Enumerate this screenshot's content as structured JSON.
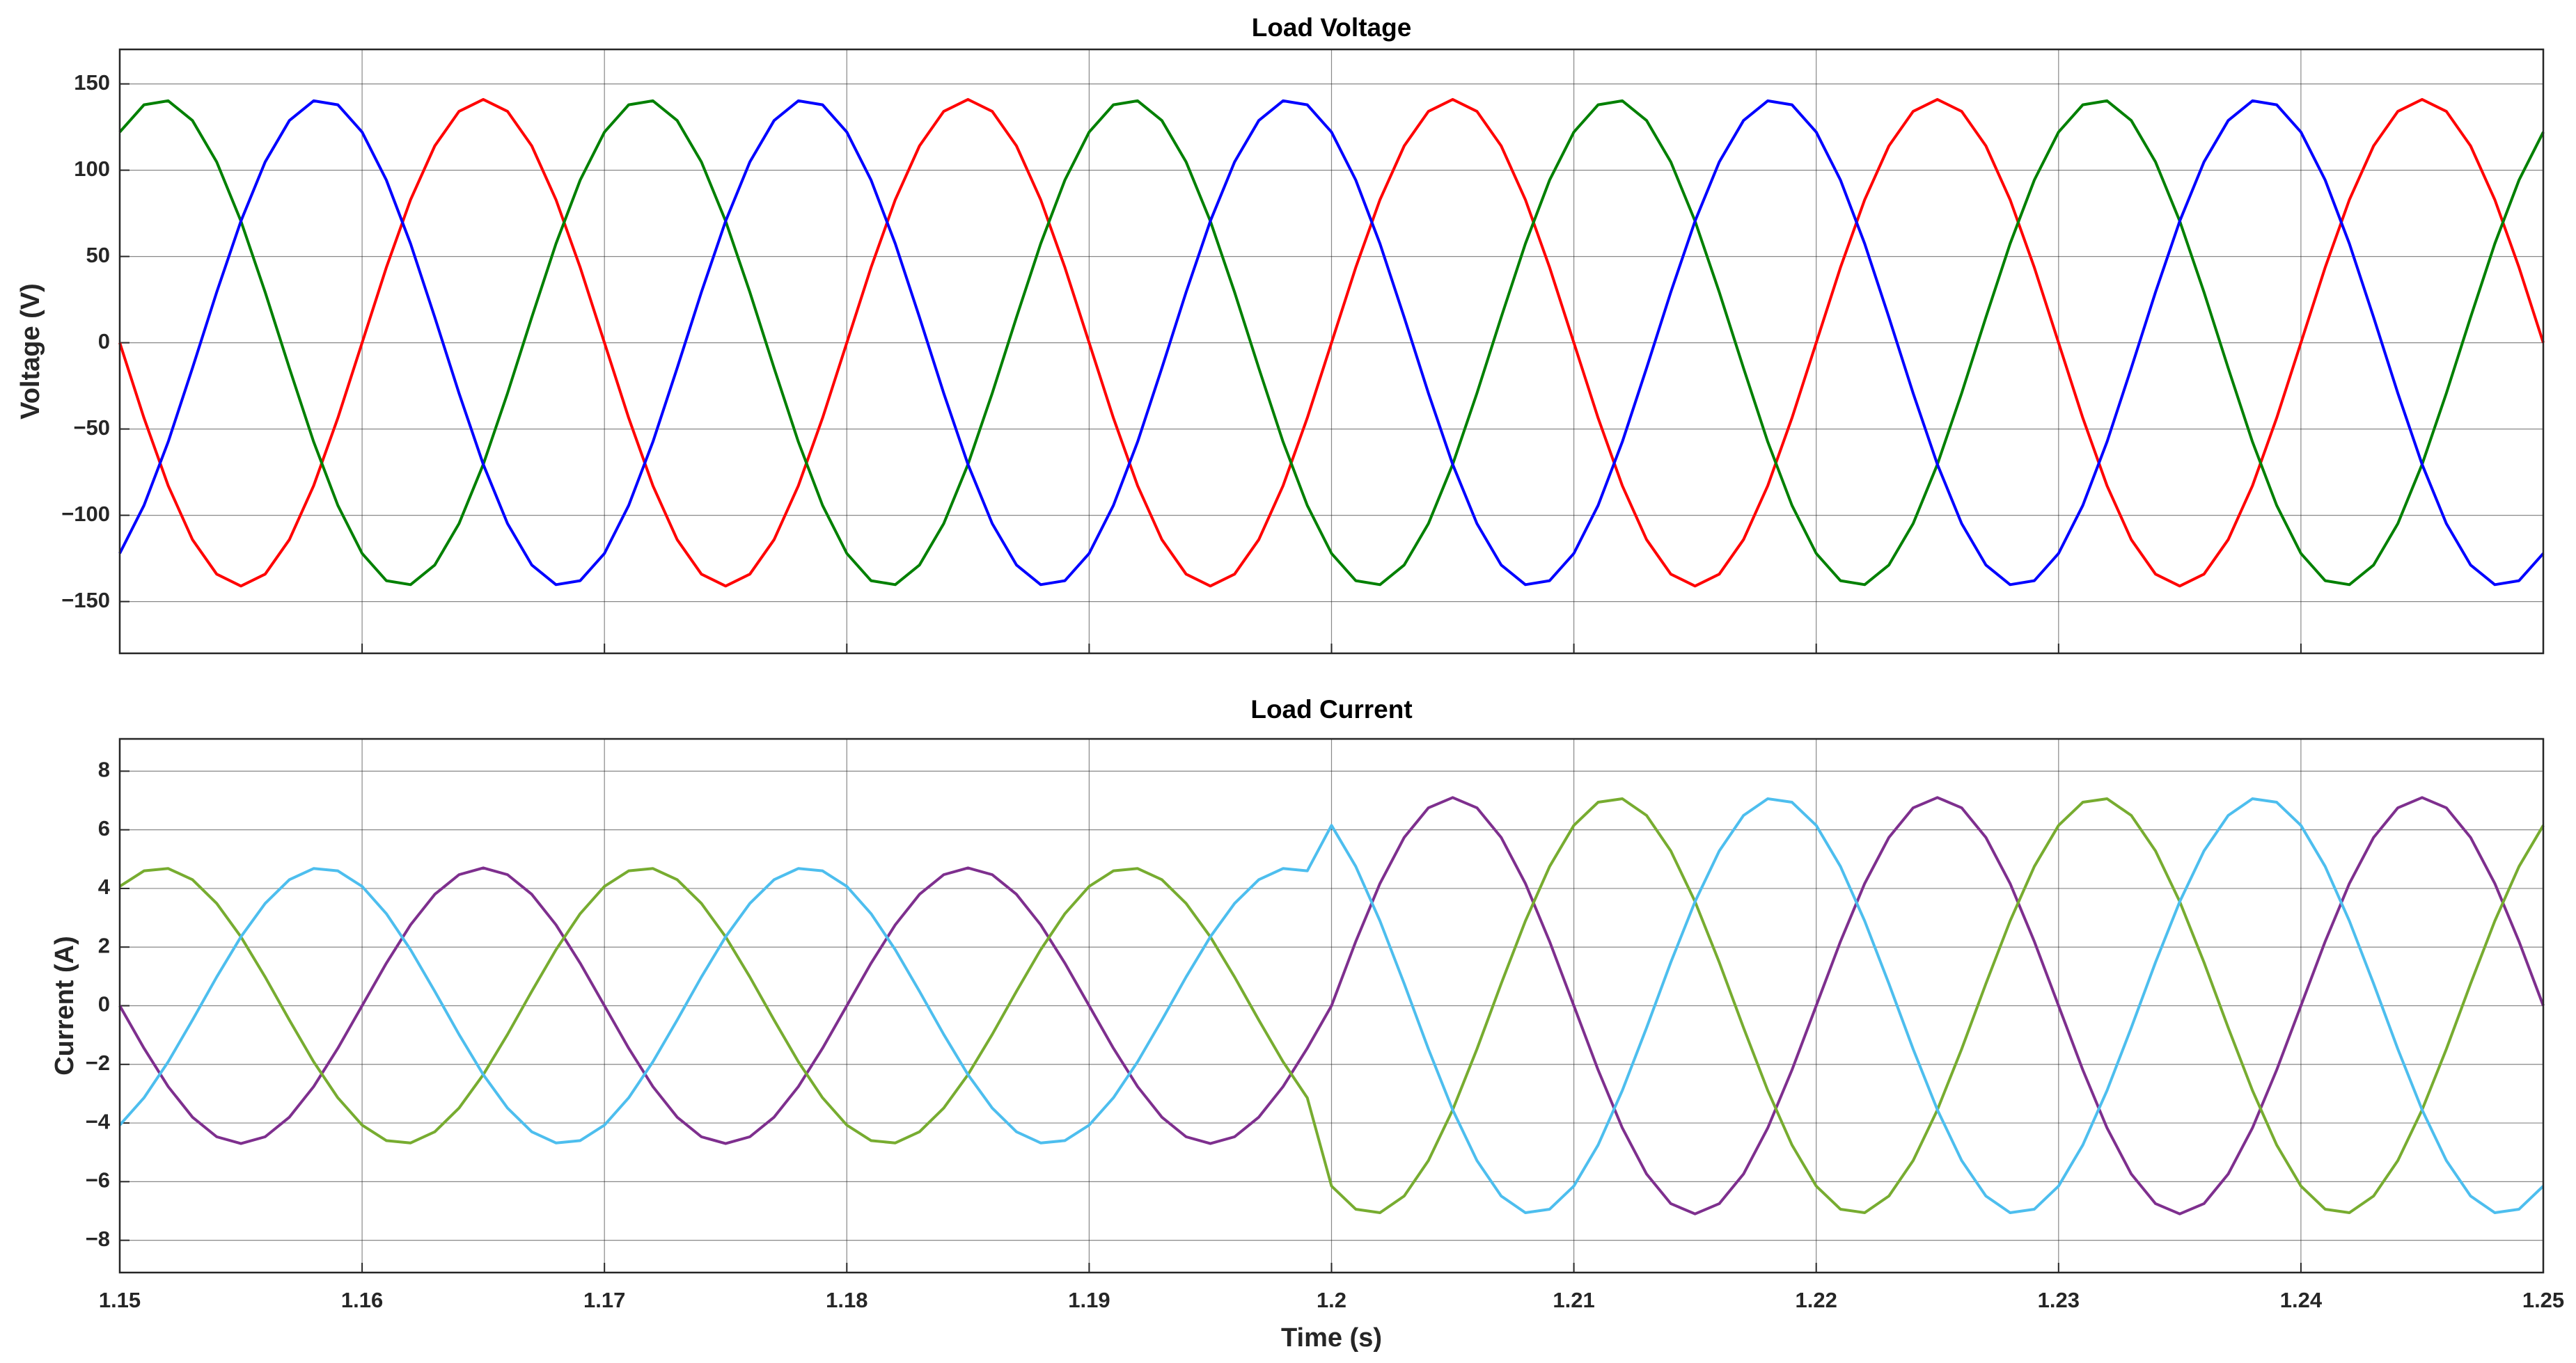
{
  "chart_data": [
    {
      "type": "line",
      "title": "Load Voltage",
      "ylabel": "Voltage (V)",
      "x": [
        1.15,
        1.151,
        1.152,
        1.153,
        1.154,
        1.155,
        1.156,
        1.157,
        1.158,
        1.159,
        1.16,
        1.161,
        1.162,
        1.163,
        1.164,
        1.165,
        1.166,
        1.167,
        1.168,
        1.169,
        1.17,
        1.171,
        1.172,
        1.173,
        1.174,
        1.175,
        1.176,
        1.177,
        1.178,
        1.179,
        1.18,
        1.181,
        1.182,
        1.183,
        1.184,
        1.185,
        1.186,
        1.187,
        1.188,
        1.189,
        1.19,
        1.191,
        1.192,
        1.193,
        1.194,
        1.195,
        1.196,
        1.197,
        1.198,
        1.199,
        1.2,
        1.201,
        1.202,
        1.203,
        1.204,
        1.205,
        1.206,
        1.207,
        1.208,
        1.209,
        1.21,
        1.211,
        1.212,
        1.213,
        1.214,
        1.215,
        1.216,
        1.217,
        1.218,
        1.219,
        1.22,
        1.221,
        1.222,
        1.223,
        1.224,
        1.225,
        1.226,
        1.227,
        1.228,
        1.229,
        1.23,
        1.231,
        1.232,
        1.233,
        1.234,
        1.235,
        1.236,
        1.237,
        1.238,
        1.239,
        1.24,
        1.241,
        1.242,
        1.243,
        1.244,
        1.245,
        1.246,
        1.247,
        1.248,
        1.249,
        1.25
      ],
      "series": [
        {
          "color": "#ff0000",
          "values": [
            0,
            -43.6,
            -82.9,
            -114.1,
            -134.1,
            -141,
            -134.1,
            -114.1,
            -82.9,
            -43.6,
            0,
            43.6,
            82.9,
            114.1,
            134.1,
            141,
            134.1,
            114.1,
            82.9,
            43.6,
            0,
            -43.6,
            -82.9,
            -114.1,
            -134.1,
            -141,
            -134.1,
            -114.1,
            -82.9,
            -43.6,
            0,
            43.6,
            82.9,
            114.1,
            134.1,
            141,
            134.1,
            114.1,
            82.9,
            43.6,
            0,
            -43.6,
            -82.9,
            -114.1,
            -134.1,
            -141,
            -134.1,
            -114.1,
            -82.9,
            -43.6,
            0,
            43.6,
            82.9,
            114.1,
            134.1,
            141,
            134.1,
            114.1,
            82.9,
            43.6,
            0,
            -43.6,
            -82.9,
            -114.1,
            -134.1,
            -141,
            -134.1,
            -114.1,
            -82.9,
            -43.6,
            0,
            43.6,
            82.9,
            114.1,
            134.1,
            141,
            134.1,
            114.1,
            82.9,
            43.6,
            0,
            -43.6,
            -82.9,
            -114.1,
            -134.1,
            -141,
            -134.1,
            -114.1,
            -82.9,
            -43.6,
            0,
            43.6,
            82.9,
            114.1,
            134.1,
            141,
            134.1,
            114.1,
            82.9,
            43.6,
            0
          ]
        },
        {
          "color": "#008000",
          "values": [
            122.1,
            137.9,
            140.2,
            128.8,
            104.8,
            70.5,
            29.3,
            -14.7,
            -57.4,
            -94.3,
            -122.1,
            -137.9,
            -140.2,
            -128.8,
            -104.8,
            -70.5,
            -29.3,
            14.7,
            57.4,
            94.3,
            122.1,
            137.9,
            140.2,
            128.8,
            104.8,
            70.5,
            29.3,
            -14.7,
            -57.4,
            -94.3,
            -122.1,
            -137.9,
            -140.2,
            -128.8,
            -104.8,
            -70.5,
            -29.3,
            14.7,
            57.4,
            94.3,
            122.1,
            137.9,
            140.2,
            128.8,
            104.8,
            70.5,
            29.3,
            -14.7,
            -57.4,
            -94.3,
            -122.1,
            -137.9,
            -140.2,
            -128.8,
            -104.8,
            -70.5,
            -29.3,
            14.7,
            57.4,
            94.3,
            122.1,
            137.9,
            140.2,
            128.8,
            104.8,
            70.5,
            29.3,
            -14.7,
            -57.4,
            -94.3,
            -122.1,
            -137.9,
            -140.2,
            -128.8,
            -104.8,
            -70.5,
            -29.3,
            14.7,
            57.4,
            94.3,
            122.1,
            137.9,
            140.2,
            128.8,
            104.8,
            70.5,
            29.3,
            -14.7,
            -57.4,
            -94.3,
            -122.1,
            -137.9,
            -140.2,
            -128.8,
            -104.8,
            -70.5,
            -29.3,
            14.7,
            57.4,
            94.3,
            122.1
          ]
        },
        {
          "color": "#0000ff",
          "values": [
            -122.1,
            -94.3,
            -57.4,
            -14.7,
            29.3,
            70.5,
            104.8,
            128.8,
            140.2,
            137.9,
            122.1,
            94.3,
            57.4,
            14.7,
            -29.3,
            -70.5,
            -104.8,
            -128.8,
            -140.2,
            -137.9,
            -122.1,
            -94.3,
            -57.4,
            -14.7,
            29.3,
            70.5,
            104.8,
            128.8,
            140.2,
            137.9,
            122.1,
            94.3,
            57.4,
            14.7,
            -29.3,
            -70.5,
            -104.8,
            -128.8,
            -140.2,
            -137.9,
            -122.1,
            -94.3,
            -57.4,
            -14.7,
            29.3,
            70.5,
            104.8,
            128.8,
            140.2,
            137.9,
            122.1,
            94.3,
            57.4,
            14.7,
            -29.3,
            -70.5,
            -104.8,
            -128.8,
            -140.2,
            -137.9,
            -122.1,
            -94.3,
            -57.4,
            -14.7,
            29.3,
            70.5,
            104.8,
            128.8,
            140.2,
            137.9,
            122.1,
            94.3,
            57.4,
            14.7,
            -29.3,
            -70.5,
            -104.8,
            -128.8,
            -140.2,
            -137.9,
            -122.1,
            -94.3,
            -57.4,
            -14.7,
            29.3,
            70.5,
            104.8,
            128.8,
            140.2,
            137.9,
            122.1,
            94.3,
            57.4,
            14.7,
            -29.3,
            -70.5,
            -104.8,
            -128.8,
            -140.2,
            -137.9,
            -122.1
          ]
        }
      ],
      "xlim": [
        1.15,
        1.25
      ],
      "xticks": [
        1.15,
        1.16,
        1.17,
        1.18,
        1.19,
        1.2,
        1.21,
        1.22,
        1.23,
        1.24,
        1.25
      ],
      "xtick_labels": false,
      "ylim": [
        -180,
        170
      ],
      "yticks": [
        {
          "value": -150,
          "label": "−150"
        },
        {
          "value": -100,
          "label": "−100"
        },
        {
          "value": -50,
          "label": "−50"
        },
        0,
        50,
        100,
        150
      ],
      "grid": true
    },
    {
      "type": "line",
      "title": "Load Current",
      "ylabel": "Current (A)",
      "xlabel": "Time (s)",
      "x": [
        1.15,
        1.151,
        1.152,
        1.153,
        1.154,
        1.155,
        1.156,
        1.157,
        1.158,
        1.159,
        1.16,
        1.161,
        1.162,
        1.163,
        1.164,
        1.165,
        1.166,
        1.167,
        1.168,
        1.169,
        1.17,
        1.171,
        1.172,
        1.173,
        1.174,
        1.175,
        1.176,
        1.177,
        1.178,
        1.179,
        1.18,
        1.181,
        1.182,
        1.183,
        1.184,
        1.185,
        1.186,
        1.187,
        1.188,
        1.189,
        1.19,
        1.191,
        1.192,
        1.193,
        1.194,
        1.195,
        1.196,
        1.197,
        1.198,
        1.199,
        1.2,
        1.201,
        1.202,
        1.203,
        1.204,
        1.205,
        1.206,
        1.207,
        1.208,
        1.209,
        1.21,
        1.211,
        1.212,
        1.213,
        1.214,
        1.215,
        1.216,
        1.217,
        1.218,
        1.219,
        1.22,
        1.221,
        1.222,
        1.223,
        1.224,
        1.225,
        1.226,
        1.227,
        1.228,
        1.229,
        1.23,
        1.231,
        1.232,
        1.233,
        1.234,
        1.235,
        1.236,
        1.237,
        1.238,
        1.239,
        1.24,
        1.241,
        1.242,
        1.243,
        1.244,
        1.245,
        1.246,
        1.247,
        1.248,
        1.249,
        1.25
      ],
      "series": [
        {
          "color": "#7e2f8e",
          "values": [
            0,
            -1.45,
            -2.76,
            -3.8,
            -4.47,
            -4.7,
            -4.47,
            -3.8,
            -2.76,
            -1.45,
            0,
            1.45,
            2.76,
            3.8,
            4.47,
            4.7,
            4.47,
            3.8,
            2.76,
            1.45,
            0,
            -1.45,
            -2.76,
            -3.8,
            -4.47,
            -4.7,
            -4.47,
            -3.8,
            -2.76,
            -1.45,
            0,
            1.45,
            2.76,
            3.8,
            4.47,
            4.7,
            4.47,
            3.8,
            2.76,
            1.45,
            0,
            -1.45,
            -2.76,
            -3.8,
            -4.47,
            -4.7,
            -4.47,
            -3.8,
            -2.76,
            -1.45,
            0,
            2.19,
            4.17,
            5.74,
            6.75,
            7.1,
            6.75,
            5.74,
            4.17,
            2.19,
            0,
            -2.19,
            -4.17,
            -5.74,
            -6.75,
            -7.1,
            -6.75,
            -5.74,
            -4.17,
            -2.19,
            0,
            2.19,
            4.17,
            5.74,
            6.75,
            7.1,
            6.75,
            5.74,
            4.17,
            2.19,
            0,
            -2.19,
            -4.17,
            -5.74,
            -6.75,
            -7.1,
            -6.75,
            -5.74,
            -4.17,
            -2.19,
            0,
            2.19,
            4.17,
            5.74,
            6.75,
            7.1,
            6.75,
            5.74,
            4.17,
            2.19,
            0
          ]
        },
        {
          "color": "#77ac30",
          "values": [
            4.07,
            4.6,
            4.68,
            4.3,
            3.49,
            2.35,
            0.98,
            -0.49,
            -1.91,
            -3.14,
            -4.07,
            -4.6,
            -4.68,
            -4.3,
            -3.49,
            -2.35,
            -0.98,
            0.49,
            1.91,
            3.14,
            4.07,
            4.6,
            4.68,
            4.3,
            3.49,
            2.35,
            0.98,
            -0.49,
            -1.91,
            -3.14,
            -4.07,
            -4.6,
            -4.68,
            -4.3,
            -3.49,
            -2.35,
            -0.98,
            0.49,
            1.91,
            3.14,
            4.07,
            4.6,
            4.68,
            4.3,
            3.49,
            2.35,
            0.98,
            -0.49,
            -1.91,
            -3.14,
            -6.15,
            -6.94,
            -7.06,
            -6.49,
            -5.28,
            -3.55,
            -1.48,
            0.75,
            2.89,
            4.75,
            6.15,
            6.94,
            7.06,
            6.49,
            5.28,
            3.55,
            1.48,
            -0.75,
            -2.89,
            -4.75,
            -6.15,
            -6.94,
            -7.06,
            -6.49,
            -5.28,
            -3.55,
            -1.48,
            0.75,
            2.89,
            4.75,
            6.15,
            6.94,
            7.06,
            6.49,
            5.28,
            3.55,
            1.48,
            -0.75,
            -2.89,
            -4.75,
            -6.15,
            -6.94,
            -7.06,
            -6.49,
            -5.28,
            -3.55,
            -1.48,
            0.75,
            2.89,
            4.75,
            6.15
          ]
        },
        {
          "color": "#4dbeee",
          "values": [
            -4.07,
            -3.14,
            -1.91,
            -0.49,
            0.98,
            2.35,
            3.49,
            4.3,
            4.68,
            4.6,
            4.07,
            3.14,
            1.91,
            0.49,
            -0.98,
            -2.35,
            -3.49,
            -4.3,
            -4.68,
            -4.6,
            -4.07,
            -3.14,
            -1.91,
            -0.49,
            0.98,
            2.35,
            3.49,
            4.3,
            4.68,
            4.6,
            4.07,
            3.14,
            1.91,
            0.49,
            -0.98,
            -2.35,
            -3.49,
            -4.3,
            -4.68,
            -4.6,
            -4.07,
            -3.14,
            -1.91,
            -0.49,
            0.98,
            2.35,
            3.49,
            4.3,
            4.68,
            4.6,
            6.15,
            4.75,
            2.89,
            0.75,
            -1.48,
            -3.55,
            -5.28,
            -6.49,
            -7.06,
            -6.94,
            -6.15,
            -4.75,
            -2.89,
            -0.75,
            1.48,
            3.55,
            5.28,
            6.49,
            7.06,
            6.94,
            6.15,
            4.75,
            2.89,
            0.75,
            -1.48,
            -3.55,
            -5.28,
            -6.49,
            -7.06,
            -6.94,
            -6.15,
            -4.75,
            -2.89,
            -0.75,
            1.48,
            3.55,
            5.28,
            6.49,
            7.06,
            6.94,
            6.15,
            4.75,
            2.89,
            0.75,
            -1.48,
            -3.55,
            -5.28,
            -6.49,
            -7.06,
            -6.94,
            -6.15
          ]
        }
      ],
      "xlim": [
        1.15,
        1.25
      ],
      "xticks": [
        1.15,
        1.16,
        1.17,
        1.18,
        1.19,
        1.2,
        1.21,
        1.22,
        1.23,
        1.24,
        1.25
      ],
      "xtick_labels": true,
      "ylim": [
        -9.1,
        9.1
      ],
      "yticks": [
        {
          "value": -8,
          "label": "−8"
        },
        {
          "value": -6,
          "label": "−6"
        },
        {
          "value": -4,
          "label": "−4"
        },
        {
          "value": -2,
          "label": "−2"
        },
        0,
        2,
        4,
        6,
        8
      ],
      "grid": true
    }
  ]
}
